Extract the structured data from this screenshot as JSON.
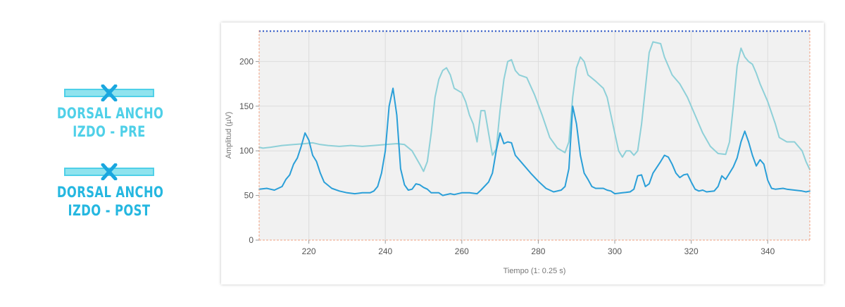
{
  "legend": {
    "pre": {
      "line1": "DORSAL ANCHO",
      "line2": "IZDO - PRE",
      "color": "#4fd0e8",
      "icon": "line-with-x-icon"
    },
    "post": {
      "line1": "DORSAL ANCHO",
      "line2": "IZDO - POST",
      "color": "#25b7e0",
      "icon": "line-with-x-icon"
    }
  },
  "chart_data": {
    "type": "line",
    "title": "",
    "xlabel": "Tiempo (1: 0.25 s)",
    "ylabel": "Amplitud (µV)",
    "xlim": [
      207,
      351
    ],
    "ylim": [
      0,
      235
    ],
    "xticks": [
      220,
      240,
      260,
      280,
      300,
      320,
      340
    ],
    "yticks": [
      0,
      50,
      100,
      150,
      200
    ],
    "grid": true,
    "threshold_line": {
      "y": 234,
      "color": "#2b56c8",
      "style": "dotted"
    },
    "series": [
      {
        "color": "#8ed0d8",
        "points": [
          [
            207,
            104
          ],
          [
            208,
            103
          ],
          [
            210,
            104
          ],
          [
            213,
            106
          ],
          [
            216,
            107
          ],
          [
            219,
            108
          ],
          [
            221,
            109
          ],
          [
            223,
            107
          ],
          [
            225,
            106
          ],
          [
            228,
            105
          ],
          [
            231,
            106
          ],
          [
            234,
            105
          ],
          [
            237,
            106
          ],
          [
            240,
            107
          ],
          [
            243,
            108
          ],
          [
            245,
            107
          ],
          [
            247,
            100
          ],
          [
            249,
            85
          ],
          [
            250,
            77
          ],
          [
            251,
            88
          ],
          [
            252,
            120
          ],
          [
            253,
            160
          ],
          [
            254,
            180
          ],
          [
            255,
            190
          ],
          [
            256,
            193
          ],
          [
            257,
            185
          ],
          [
            258,
            170
          ],
          [
            260,
            165
          ],
          [
            261,
            155
          ],
          [
            262,
            140
          ],
          [
            263,
            130
          ],
          [
            264,
            110
          ],
          [
            265,
            145
          ],
          [
            266,
            145
          ],
          [
            267,
            120
          ],
          [
            268,
            95
          ],
          [
            269,
            102
          ],
          [
            270,
            145
          ],
          [
            271,
            180
          ],
          [
            272,
            200
          ],
          [
            273,
            202
          ],
          [
            274,
            190
          ],
          [
            275,
            185
          ],
          [
            277,
            182
          ],
          [
            279,
            163
          ],
          [
            281,
            140
          ],
          [
            283,
            115
          ],
          [
            285,
            103
          ],
          [
            287,
            98
          ],
          [
            288,
            110
          ],
          [
            289,
            160
          ],
          [
            290,
            193
          ],
          [
            291,
            205
          ],
          [
            292,
            200
          ],
          [
            293,
            185
          ],
          [
            295,
            178
          ],
          [
            297,
            170
          ],
          [
            298,
            160
          ],
          [
            299,
            140
          ],
          [
            300,
            120
          ],
          [
            301,
            100
          ],
          [
            302,
            93
          ],
          [
            303,
            100
          ],
          [
            304,
            100
          ],
          [
            305,
            95
          ],
          [
            306,
            100
          ],
          [
            307,
            130
          ],
          [
            308,
            170
          ],
          [
            309,
            210
          ],
          [
            310,
            222
          ],
          [
            312,
            220
          ],
          [
            313,
            205
          ],
          [
            315,
            185
          ],
          [
            317,
            175
          ],
          [
            319,
            160
          ],
          [
            321,
            140
          ],
          [
            323,
            120
          ],
          [
            325,
            105
          ],
          [
            327,
            97
          ],
          [
            329,
            96
          ],
          [
            330,
            110
          ],
          [
            331,
            150
          ],
          [
            332,
            195
          ],
          [
            333,
            215
          ],
          [
            334,
            205
          ],
          [
            335,
            200
          ],
          [
            336,
            197
          ],
          [
            337,
            187
          ],
          [
            338,
            175
          ],
          [
            340,
            155
          ],
          [
            342,
            130
          ],
          [
            343,
            115
          ],
          [
            345,
            110
          ],
          [
            347,
            110
          ],
          [
            349,
            100
          ],
          [
            350,
            88
          ],
          [
            351,
            79
          ]
        ]
      },
      {
        "color": "#2a9fd8",
        "points": [
          [
            207,
            57
          ],
          [
            209,
            58
          ],
          [
            211,
            56
          ],
          [
            213,
            60
          ],
          [
            214,
            68
          ],
          [
            215,
            73
          ],
          [
            216,
            85
          ],
          [
            217,
            92
          ],
          [
            218,
            105
          ],
          [
            219,
            120
          ],
          [
            220,
            112
          ],
          [
            221,
            95
          ],
          [
            222,
            88
          ],
          [
            223,
            75
          ],
          [
            224,
            65
          ],
          [
            226,
            58
          ],
          [
            228,
            55
          ],
          [
            230,
            53
          ],
          [
            232,
            52
          ],
          [
            234,
            53
          ],
          [
            236,
            53
          ],
          [
            237,
            55
          ],
          [
            238,
            60
          ],
          [
            239,
            75
          ],
          [
            240,
            100
          ],
          [
            241,
            150
          ],
          [
            242,
            170
          ],
          [
            243,
            140
          ],
          [
            244,
            80
          ],
          [
            245,
            62
          ],
          [
            246,
            56
          ],
          [
            247,
            57
          ],
          [
            248,
            63
          ],
          [
            249,
            62
          ],
          [
            250,
            59
          ],
          [
            251,
            57
          ],
          [
            252,
            53
          ],
          [
            254,
            53
          ],
          [
            255,
            50
          ],
          [
            257,
            52
          ],
          [
            258,
            51
          ],
          [
            260,
            53
          ],
          [
            262,
            53
          ],
          [
            264,
            52
          ],
          [
            265,
            56
          ],
          [
            267,
            65
          ],
          [
            268,
            75
          ],
          [
            269,
            100
          ],
          [
            270,
            120
          ],
          [
            271,
            108
          ],
          [
            272,
            110
          ],
          [
            273,
            109
          ],
          [
            274,
            95
          ],
          [
            276,
            85
          ],
          [
            278,
            75
          ],
          [
            280,
            66
          ],
          [
            282,
            58
          ],
          [
            284,
            54
          ],
          [
            286,
            56
          ],
          [
            287,
            60
          ],
          [
            288,
            80
          ],
          [
            289,
            150
          ],
          [
            290,
            130
          ],
          [
            291,
            95
          ],
          [
            292,
            75
          ],
          [
            293,
            68
          ],
          [
            294,
            60
          ],
          [
            295,
            58
          ],
          [
            297,
            58
          ],
          [
            298,
            56
          ],
          [
            299,
            55
          ],
          [
            300,
            52
          ],
          [
            302,
            53
          ],
          [
            304,
            54
          ],
          [
            305,
            57
          ],
          [
            306,
            72
          ],
          [
            307,
            73
          ],
          [
            308,
            60
          ],
          [
            309,
            63
          ],
          [
            310,
            75
          ],
          [
            312,
            88
          ],
          [
            313,
            95
          ],
          [
            314,
            93
          ],
          [
            315,
            85
          ],
          [
            316,
            75
          ],
          [
            317,
            70
          ],
          [
            318,
            73
          ],
          [
            319,
            74
          ],
          [
            320,
            65
          ],
          [
            321,
            57
          ],
          [
            322,
            55
          ],
          [
            323,
            56
          ],
          [
            324,
            54
          ],
          [
            326,
            55
          ],
          [
            327,
            60
          ],
          [
            328,
            72
          ],
          [
            329,
            68
          ],
          [
            330,
            75
          ],
          [
            331,
            82
          ],
          [
            332,
            92
          ],
          [
            333,
            110
          ],
          [
            334,
            122
          ],
          [
            335,
            110
          ],
          [
            336,
            95
          ],
          [
            337,
            83
          ],
          [
            338,
            90
          ],
          [
            339,
            85
          ],
          [
            340,
            67
          ],
          [
            341,
            58
          ],
          [
            342,
            57
          ],
          [
            344,
            58
          ],
          [
            345,
            57
          ],
          [
            347,
            56
          ],
          [
            349,
            55
          ],
          [
            350,
            54
          ],
          [
            351,
            55
          ]
        ]
      }
    ]
  }
}
